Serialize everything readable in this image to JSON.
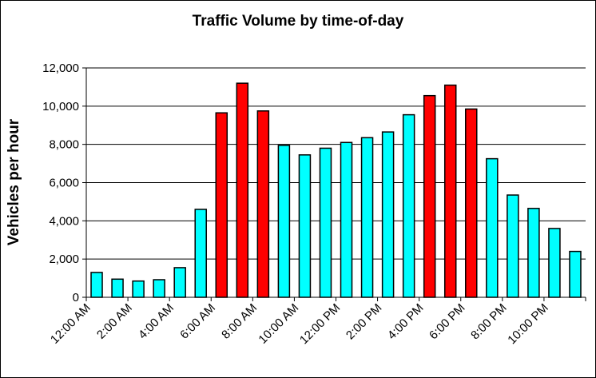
{
  "chart_data": {
    "type": "bar",
    "title": "Traffic Volume by time-of-day",
    "xlabel": "",
    "ylabel": "Vehicles per hour",
    "ylim": [
      0,
      12000
    ],
    "yticks": [
      "0",
      "2,000",
      "4,000",
      "6,000",
      "8,000",
      "10,000",
      "12,000"
    ],
    "xtick_labels": [
      "12:00 AM",
      "2:00 AM",
      "4:00 AM",
      "6:00 AM",
      "8:00 AM",
      "10:00 AM",
      "12:00 PM",
      "2:00 PM",
      "4:00 PM",
      "6:00 PM",
      "8:00 PM",
      "10:00 PM"
    ],
    "hours": [
      0,
      1,
      2,
      3,
      4,
      5,
      6,
      7,
      8,
      9,
      10,
      11,
      12,
      13,
      14,
      15,
      16,
      17,
      18,
      19,
      20,
      21,
      22,
      23
    ],
    "values": [
      1300,
      950,
      850,
      920,
      1550,
      4600,
      9650,
      11200,
      9750,
      7950,
      7450,
      7800,
      8100,
      8350,
      8650,
      9550,
      10550,
      11100,
      9850,
      7250,
      5350,
      4650,
      3600,
      2400
    ],
    "peak_hours": [
      6,
      7,
      8,
      16,
      17,
      18
    ],
    "colors": {
      "offpeak": "#00FFFF",
      "peak": "#FF0000",
      "outline": "#000000"
    },
    "grid": true,
    "legend": "none"
  }
}
